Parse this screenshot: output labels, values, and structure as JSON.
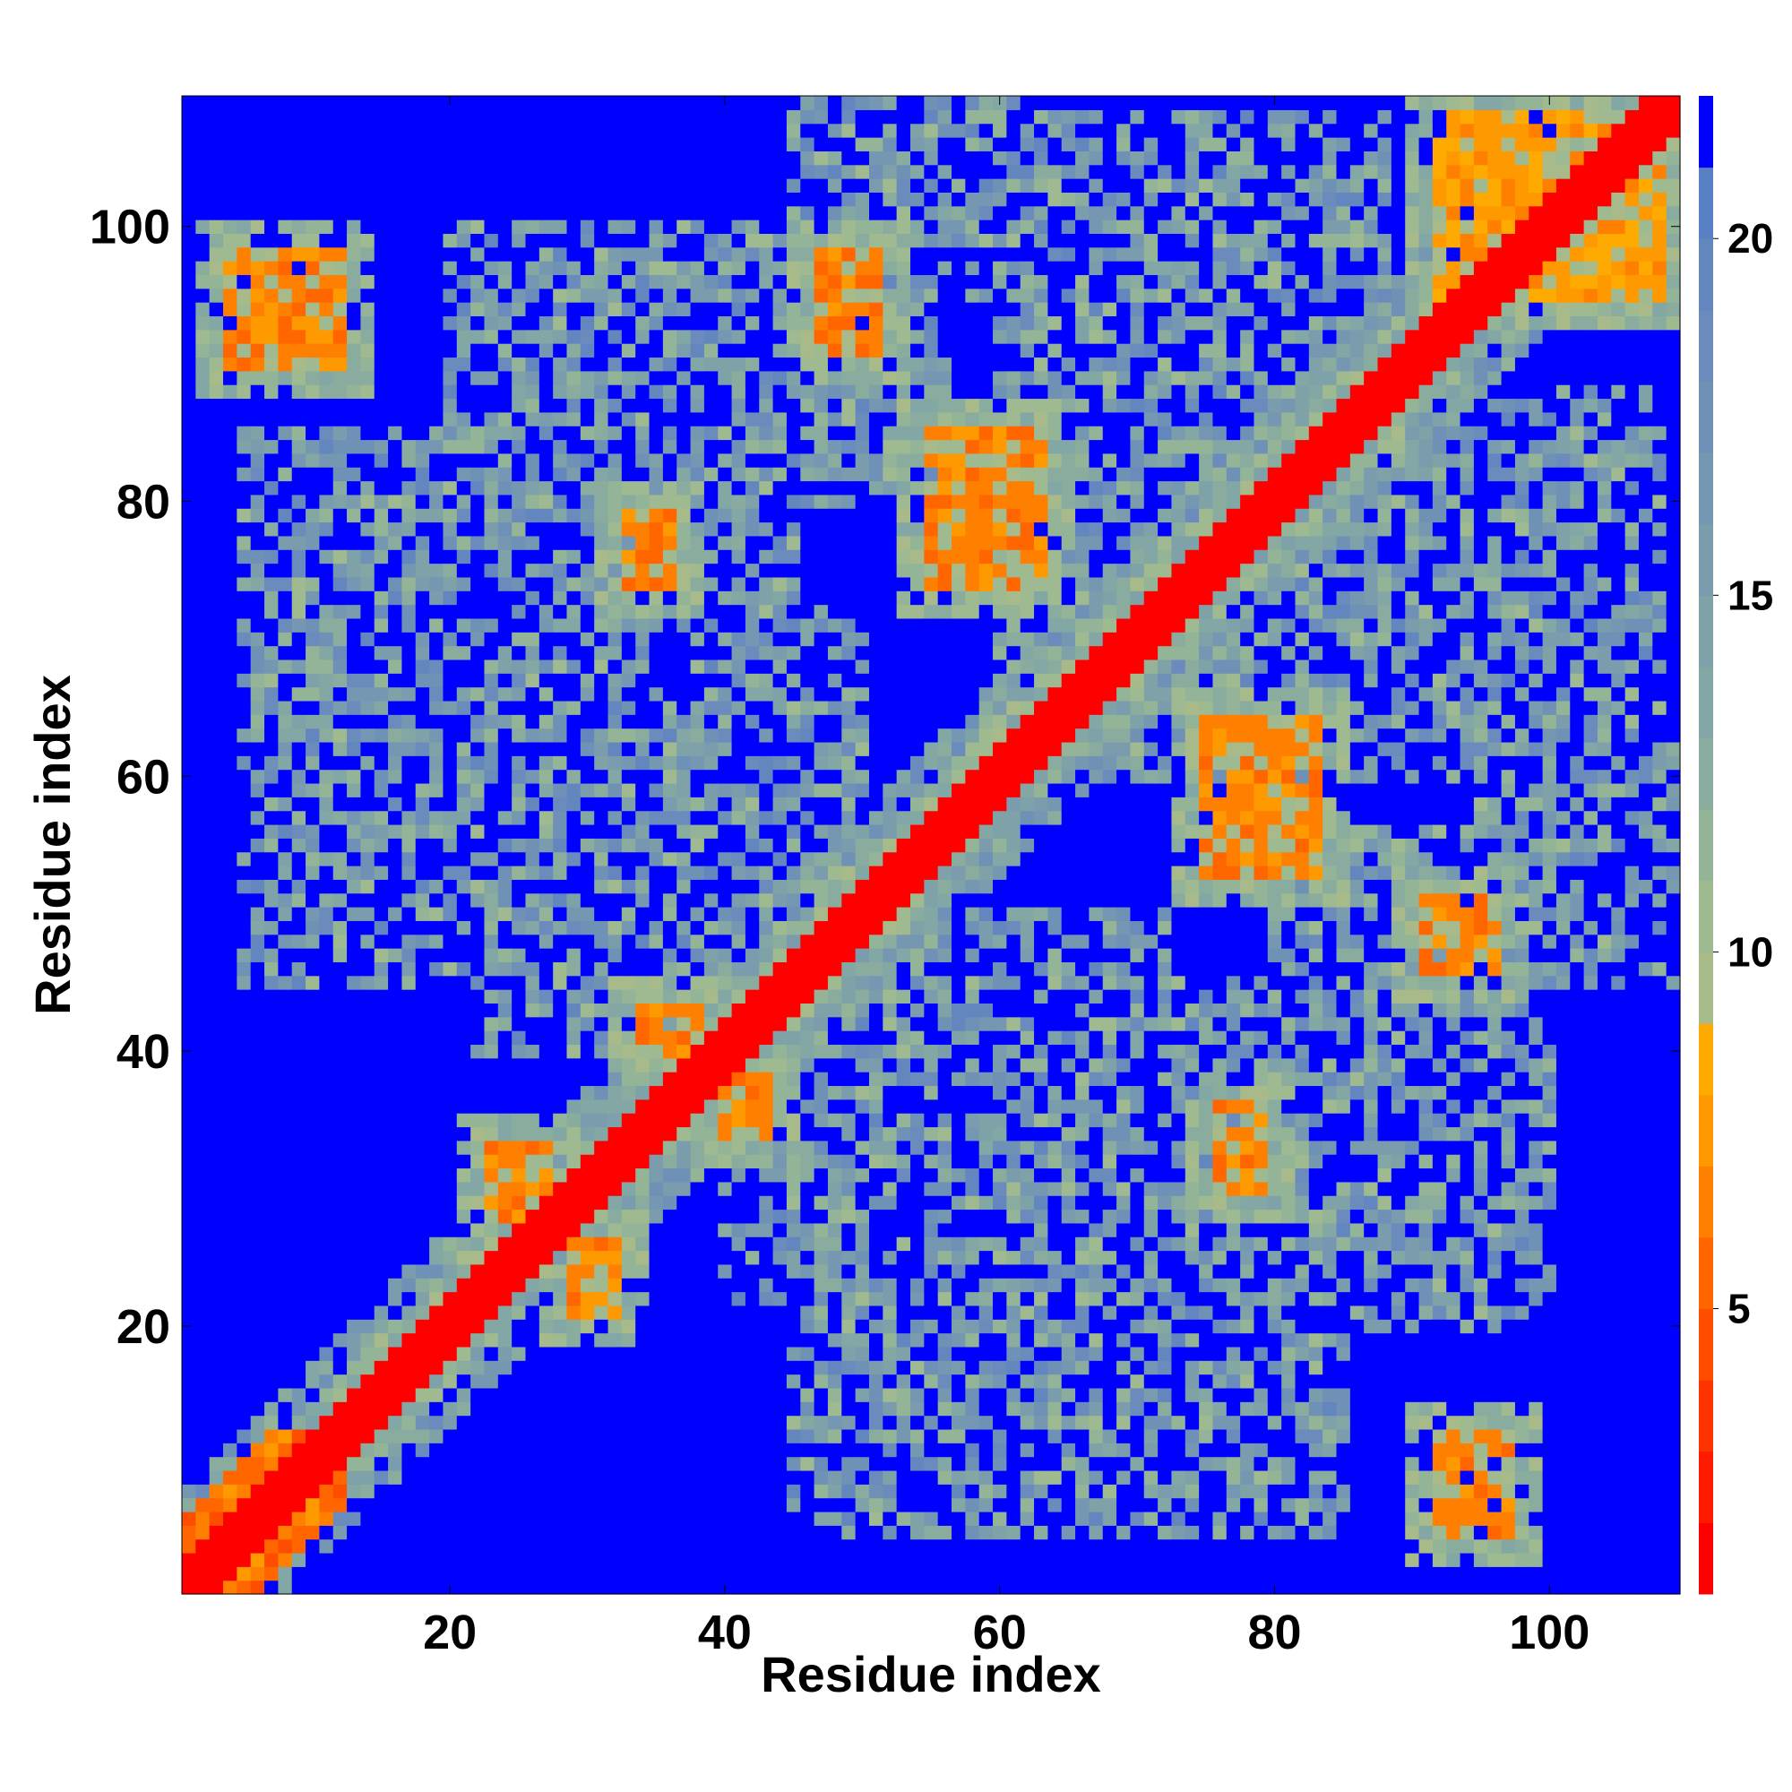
{
  "chart_data": {
    "type": "heatmap",
    "title": "",
    "xlabel": "Residue index",
    "ylabel": "Residue index",
    "x_range": [
      1,
      109
    ],
    "y_range": [
      1,
      109
    ],
    "x_ticks": [
      20,
      40,
      60,
      80,
      100
    ],
    "y_ticks": [
      20,
      40,
      60,
      80,
      100
    ],
    "colorbar": {
      "ticks": [
        5,
        10,
        15,
        20
      ],
      "range": [
        1,
        22
      ],
      "levels": [
        {
          "max": 2,
          "color": "#ff0000"
        },
        {
          "max": 3,
          "color": "#ff1a00"
        },
        {
          "max": 4,
          "color": "#ff3300"
        },
        {
          "max": 5,
          "color": "#ff4d00"
        },
        {
          "max": 6,
          "color": "#ff6600"
        },
        {
          "max": 7,
          "color": "#ff8000"
        },
        {
          "max": 8,
          "color": "#ff9900"
        },
        {
          "max": 9,
          "color": "#ffaa00"
        },
        {
          "max": 10,
          "color": "#a8ba8a"
        },
        {
          "max": 11,
          "color": "#9fb990"
        },
        {
          "max": 12,
          "color": "#94b497"
        },
        {
          "max": 13,
          "color": "#8aac9e"
        },
        {
          "max": 14,
          "color": "#83a7a4"
        },
        {
          "max": 15,
          "color": "#7ea2a8"
        },
        {
          "max": 16,
          "color": "#7a9cad"
        },
        {
          "max": 17,
          "color": "#7597b2"
        },
        {
          "max": 18,
          "color": "#7091b6"
        },
        {
          "max": 19,
          "color": "#6a8bbb"
        },
        {
          "max": 20,
          "color": "#6386bf"
        },
        {
          "max": 21,
          "color": "#5a80c4"
        },
        {
          "max": 22,
          "color": "#0000ff"
        }
      ]
    },
    "description_of_cells": "Symmetric residue-residue distance map; values are approximate distances per residue pair",
    "diagonal_value": 1,
    "background_value": 22,
    "features": [
      {
        "kind": "diagonal",
        "width": 2.5,
        "value": 1
      },
      {
        "kind": "near_diagonal_halo",
        "width": 7,
        "value": 12
      },
      {
        "kind": "antiparallel_strand",
        "a": [
          1,
          10
        ],
        "b": [
          1,
          10
        ],
        "center_sum": 20,
        "value": 6
      },
      {
        "kind": "contact",
        "x": [
          92,
          97
        ],
        "y": [
          5,
          12
        ],
        "value": 6
      },
      {
        "kind": "contact",
        "x": [
          47,
          51
        ],
        "y": [
          91,
          98
        ],
        "value": 6
      },
      {
        "kind": "contact",
        "x": [
          55,
          63
        ],
        "y": [
          74,
          85
        ],
        "value": 6
      },
      {
        "kind": "contact",
        "x": [
          75,
          83
        ],
        "y": [
          53,
          64
        ],
        "value": 6
      },
      {
        "kind": "contact",
        "x": [
          91,
          96
        ],
        "y": [
          46,
          51
        ],
        "value": 6
      },
      {
        "kind": "contact",
        "x": [
          33,
          36
        ],
        "y": [
          74,
          79
        ],
        "value": 6
      },
      {
        "kind": "contact",
        "x": [
          76,
          79
        ],
        "y": [
          30,
          36
        ],
        "value": 6
      },
      {
        "kind": "contact",
        "x": [
          23,
          27
        ],
        "y": [
          28,
          33
        ],
        "value": 6
      },
      {
        "kind": "contact",
        "x": [
          29,
          32
        ],
        "y": [
          21,
          26
        ],
        "value": 6
      },
      {
        "kind": "contact",
        "x": [
          34,
          38
        ],
        "y": [
          40,
          43
        ],
        "value": 6
      },
      {
        "kind": "contact",
        "x": [
          40,
          43
        ],
        "y": [
          34,
          38
        ],
        "value": 6
      },
      {
        "kind": "contact",
        "x": [
          4,
          12
        ],
        "y": [
          90,
          98
        ],
        "value": 6
      },
      {
        "kind": "contact",
        "x": [
          92,
          108
        ],
        "y": [
          95,
          108
        ],
        "value": 7
      }
    ]
  }
}
